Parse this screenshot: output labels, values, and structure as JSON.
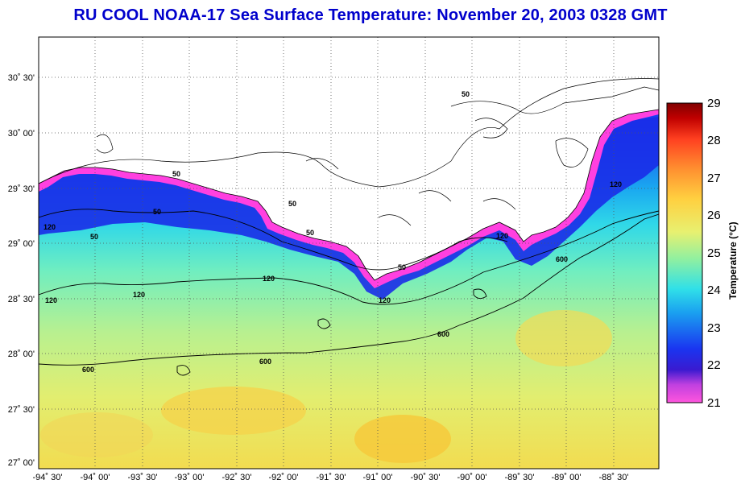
{
  "title": "RU COOL  NOAA-17  Sea Surface Temperature:  November 20, 2003 0328 GMT",
  "map": {
    "lon_ticks": [
      "-94˚ 30'",
      "-94˚ 00'",
      "-93˚ 30'",
      "-93˚ 00'",
      "-92˚ 30'",
      "-92˚ 00'",
      "-91˚ 30'",
      "-91˚ 00'",
      "-90˚ 30'",
      "-90˚ 00'",
      "-89˚ 30'",
      "-89˚ 00'",
      "-88˚ 30'"
    ],
    "lat_ticks": [
      "30˚ 30'",
      "30˚ 00'",
      "29˚ 30'",
      "29˚ 00'",
      "28˚ 30'",
      "28˚ 00'",
      "27˚ 30'",
      "27˚ 00'"
    ],
    "isobath_labels": [
      "50",
      "50",
      "50",
      "50",
      "50",
      "50",
      "50",
      "120",
      "120",
      "120",
      "120",
      "120",
      "120",
      "600",
      "600",
      "600",
      "600",
      "120"
    ]
  },
  "colorbar": {
    "label": "Temperature (°C)",
    "ticks": [
      "29",
      "28",
      "27",
      "26",
      "25",
      "24",
      "23",
      "22",
      "21"
    ],
    "min": 21,
    "max": 29,
    "colors": [
      "#ff55dd",
      "#3a1ad0",
      "#1a35f0",
      "#1aa0f0",
      "#30e0e8",
      "#90f0a0",
      "#e8f070",
      "#ffd040",
      "#ff9030",
      "#ff4020",
      "#c00000",
      "#800000"
    ]
  }
}
